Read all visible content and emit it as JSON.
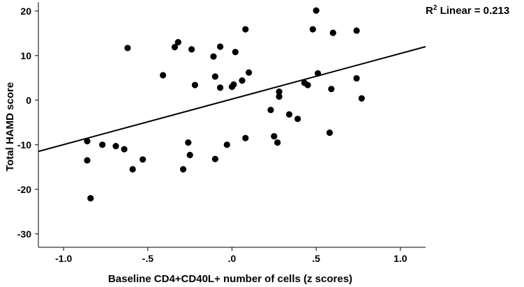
{
  "chart_data": {
    "type": "scatter",
    "xlabel": "Baseline CD4+CD40L+ number of cells (z scores)",
    "ylabel": "Total HAMD score",
    "xlim": [
      -1.15,
      1.15
    ],
    "ylim": [
      -33,
      22
    ],
    "x_ticks": [
      -1.0,
      -0.5,
      0.0,
      0.5,
      1.0
    ],
    "x_tick_labels": [
      "-1.0",
      "-.5",
      ".0",
      ".5",
      "1.0"
    ],
    "y_ticks": [
      -30,
      -20,
      -10,
      0,
      10,
      20
    ],
    "y_tick_labels": [
      "-30",
      "-20",
      "-10",
      "0",
      "10",
      "20"
    ],
    "grid": false,
    "annotation": {
      "prefix": "R",
      "superscript": "2",
      "text": " Linear = 0.213"
    },
    "fit_line": {
      "x": [
        -1.15,
        1.15
      ],
      "y": [
        -11.5,
        12.0
      ]
    },
    "points": [
      {
        "x": -0.86,
        "y": -9.2
      },
      {
        "x": -0.86,
        "y": -13.5
      },
      {
        "x": -0.84,
        "y": -22.0
      },
      {
        "x": -0.77,
        "y": -10.0
      },
      {
        "x": -0.69,
        "y": -10.3
      },
      {
        "x": -0.64,
        "y": -11.0
      },
      {
        "x": -0.62,
        "y": 11.7
      },
      {
        "x": -0.59,
        "y": -15.5
      },
      {
        "x": -0.53,
        "y": -13.3
      },
      {
        "x": -0.41,
        "y": 5.6
      },
      {
        "x": -0.34,
        "y": 11.9
      },
      {
        "x": -0.32,
        "y": 13.0
      },
      {
        "x": -0.29,
        "y": -15.5
      },
      {
        "x": -0.26,
        "y": -9.5
      },
      {
        "x": -0.25,
        "y": -12.3
      },
      {
        "x": -0.24,
        "y": 11.4
      },
      {
        "x": -0.22,
        "y": 3.4
      },
      {
        "x": -0.11,
        "y": 9.8
      },
      {
        "x": -0.1,
        "y": 5.3
      },
      {
        "x": -0.1,
        "y": -13.2
      },
      {
        "x": -0.07,
        "y": 12.0
      },
      {
        "x": -0.07,
        "y": 2.8
      },
      {
        "x": -0.03,
        "y": -10.0
      },
      {
        "x": 0.0,
        "y": 3.0
      },
      {
        "x": 0.01,
        "y": 3.5
      },
      {
        "x": 0.02,
        "y": 10.8
      },
      {
        "x": 0.06,
        "y": 4.4
      },
      {
        "x": 0.08,
        "y": -8.5
      },
      {
        "x": 0.08,
        "y": 15.9
      },
      {
        "x": 0.1,
        "y": 6.2
      },
      {
        "x": 0.23,
        "y": -2.2
      },
      {
        "x": 0.25,
        "y": -8.1
      },
      {
        "x": 0.27,
        "y": -9.5
      },
      {
        "x": 0.28,
        "y": 1.9
      },
      {
        "x": 0.28,
        "y": 0.8
      },
      {
        "x": 0.34,
        "y": -3.2
      },
      {
        "x": 0.39,
        "y": -4.2
      },
      {
        "x": 0.43,
        "y": 3.9
      },
      {
        "x": 0.45,
        "y": 3.4
      },
      {
        "x": 0.48,
        "y": 15.9
      },
      {
        "x": 0.5,
        "y": 20.1
      },
      {
        "x": 0.51,
        "y": 6.0
      },
      {
        "x": 0.58,
        "y": -7.3
      },
      {
        "x": 0.59,
        "y": 2.5
      },
      {
        "x": 0.6,
        "y": 15.1
      },
      {
        "x": 0.74,
        "y": 4.9
      },
      {
        "x": 0.74,
        "y": 15.6
      },
      {
        "x": 0.77,
        "y": 0.4
      }
    ]
  }
}
